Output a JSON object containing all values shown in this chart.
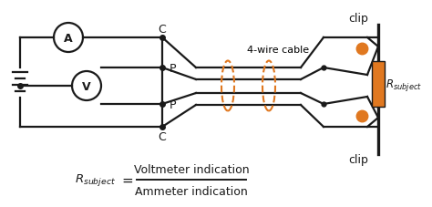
{
  "bg_color": "#ffffff",
  "line_color": "#1a1a1a",
  "orange_color": "#E07820",
  "title": "4-wire cable",
  "label_C_top": "C",
  "label_C_bot": "C",
  "label_P_top": "P",
  "label_P_bot": "P",
  "label_clip_top": "clip",
  "label_clip_bot": "clip",
  "formula_num": "Voltmeter indication",
  "formula_den": "Ammeter indication"
}
